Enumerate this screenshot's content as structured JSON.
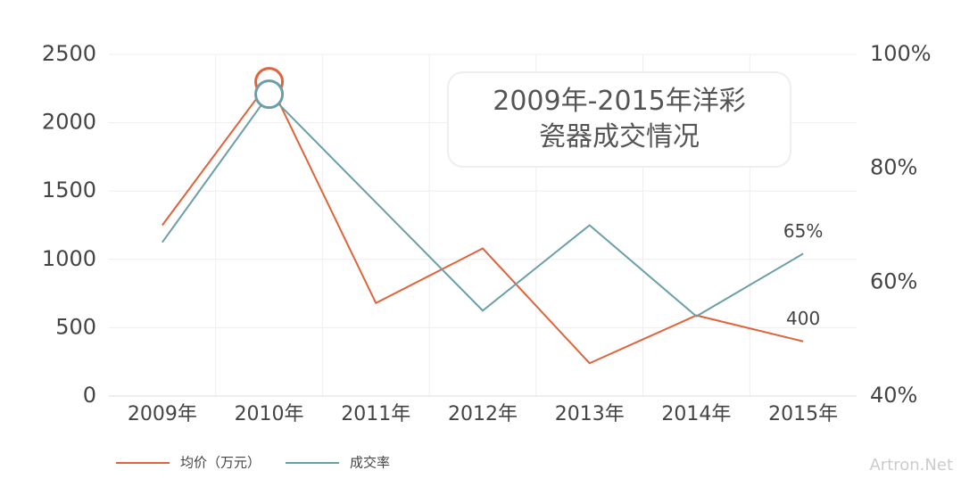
{
  "chart_data": {
    "type": "line",
    "title": "2009年-2015年洋彩瓷器成交情况",
    "categories": [
      "2009年",
      "2010年",
      "2011年",
      "2012年",
      "2013年",
      "2014年",
      "2015年"
    ],
    "series": [
      {
        "name": "均价（万元）",
        "color": "#e0633a",
        "values": [
          1250,
          2300,
          680,
          1080,
          240,
          590,
          400
        ],
        "value_labels": [
          null,
          null,
          null,
          null,
          null,
          null,
          "400"
        ]
      },
      {
        "name": "成交率",
        "color": "#6b9fa8",
        "axis": "y2",
        "values": [
          67,
          93,
          74,
          55,
          70,
          54,
          65
        ],
        "value_labels": [
          null,
          null,
          null,
          null,
          null,
          null,
          "65%"
        ]
      }
    ],
    "ylim": [
      0,
      2500
    ],
    "yticks": [
      0,
      500,
      1000,
      1500,
      2000,
      2500
    ],
    "y2lim": [
      40,
      100
    ],
    "y2ticks": [
      {
        "value": 40,
        "label": "40%"
      },
      {
        "value": 60,
        "label": "60%"
      },
      {
        "value": 80,
        "label": "80%"
      },
      {
        "value": 100,
        "label": "100%"
      }
    ],
    "grid": true,
    "watermark": "Artron.Net"
  }
}
